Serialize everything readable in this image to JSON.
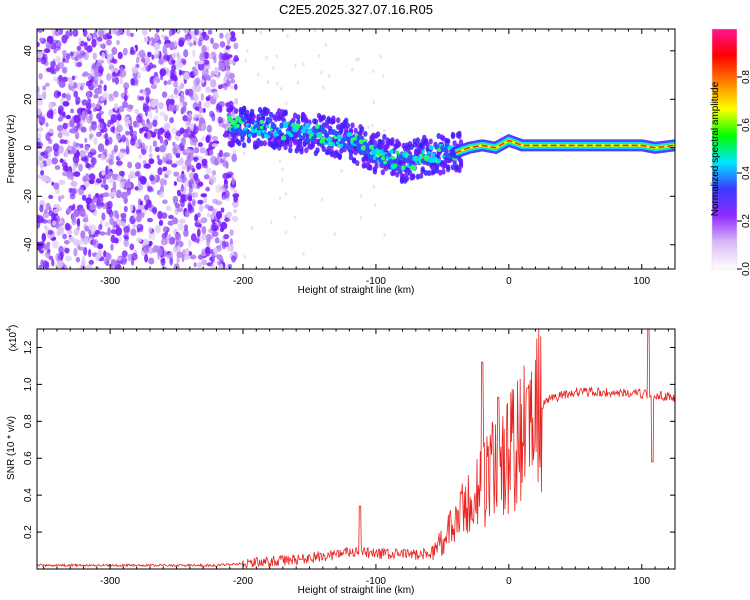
{
  "title": "C2E5.2025.327.07.16.R05",
  "colors": {
    "axis": "#000000",
    "snr_line": "#e8231f",
    "background": "#ffffff"
  },
  "chart_data": [
    {
      "type": "heatmap",
      "name": "spectrogram",
      "xlabel": "Height of straight line (km)",
      "ylabel": "Frequency (Hz)",
      "xlim": [
        -355,
        125
      ],
      "ylim": [
        -50,
        49
      ],
      "xticks": [
        -300,
        -200,
        -100,
        0,
        100
      ],
      "xtick_labels": [
        "-300",
        "-200",
        "-100",
        "0",
        "100"
      ],
      "yticks": [
        40,
        20,
        0,
        -20,
        -40
      ],
      "ytick_labels": [
        "40",
        "20",
        "0",
        "-20",
        "-40"
      ],
      "colorbar": {
        "label": "Normalized spectral amplitude",
        "range": [
          0,
          1
        ],
        "ticks": [
          0.0,
          0.2,
          0.4,
          0.6,
          0.8
        ],
        "tick_labels": [
          "0.0",
          "0.2",
          "0.4",
          "0.6",
          "0.8"
        ],
        "colormap": [
          "#ffffff",
          "#d9b8f5",
          "#8f2bff",
          "#3b3bff",
          "#00e5ff",
          "#00ff00",
          "#ffff00",
          "#ff8000",
          "#ff0000",
          "#ff1493"
        ]
      },
      "ridge": [
        {
          "x": -210,
          "y": 9
        },
        {
          "x": -180,
          "y": 8
        },
        {
          "x": -150,
          "y": 6
        },
        {
          "x": -120,
          "y": 3
        },
        {
          "x": -100,
          "y": -2
        },
        {
          "x": -80,
          "y": -6
        },
        {
          "x": -60,
          "y": -3
        },
        {
          "x": -40,
          "y": -2
        },
        {
          "x": -30,
          "y": 0
        },
        {
          "x": -20,
          "y": 1
        },
        {
          "x": -10,
          "y": 0
        },
        {
          "x": 0,
          "y": 3
        },
        {
          "x": 10,
          "y": 1
        },
        {
          "x": 50,
          "y": 1
        },
        {
          "x": 100,
          "y": 1
        },
        {
          "x": 110,
          "y": 0
        },
        {
          "x": 125,
          "y": 1
        }
      ],
      "noise_region_x": [
        -355,
        -205
      ]
    },
    {
      "type": "line",
      "name": "snr",
      "xlabel": "Height of straight line (km)",
      "ylabel": "SNR (10 * v/v)",
      "y_multiplier_label": "(x10",
      "y_multiplier_exp": "4",
      "y_multiplier_close": ")",
      "xlim": [
        -355,
        125
      ],
      "ylim": [
        0,
        1.3
      ],
      "xticks": [
        -300,
        -200,
        -100,
        0,
        100
      ],
      "xtick_labels": [
        "-300",
        "-200",
        "-100",
        "0",
        "100"
      ],
      "yticks": [
        0.2,
        0.4,
        0.6,
        0.8,
        1.0,
        1.2
      ],
      "ytick_labels": [
        "0.2",
        "0.4",
        "0.6",
        "0.8",
        "1.0",
        "1.2"
      ],
      "envelope": [
        {
          "x": -355,
          "y": 0.02
        },
        {
          "x": -220,
          "y": 0.02
        },
        {
          "x": -200,
          "y": 0.03
        },
        {
          "x": -160,
          "y": 0.05
        },
        {
          "x": -120,
          "y": 0.09
        },
        {
          "x": -90,
          "y": 0.08
        },
        {
          "x": -60,
          "y": 0.08
        },
        {
          "x": -50,
          "y": 0.15
        },
        {
          "x": -40,
          "y": 0.25
        },
        {
          "x": -30,
          "y": 0.35
        },
        {
          "x": -20,
          "y": 0.45
        },
        {
          "x": -10,
          "y": 0.55
        },
        {
          "x": 0,
          "y": 0.62
        },
        {
          "x": 10,
          "y": 0.7
        },
        {
          "x": 20,
          "y": 0.84
        },
        {
          "x": 30,
          "y": 0.92
        },
        {
          "x": 50,
          "y": 0.96
        },
        {
          "x": 100,
          "y": 0.95
        },
        {
          "x": 125,
          "y": 0.93
        }
      ],
      "spikes": [
        {
          "x": -112,
          "y": 0.34
        },
        {
          "x": -20,
          "y": 1.12
        },
        {
          "x": -8,
          "y": 0.93
        },
        {
          "x": 14,
          "y": 0.98
        },
        {
          "x": 105,
          "y": 1.3
        },
        {
          "x": 108,
          "y": 0.58
        }
      ]
    }
  ]
}
